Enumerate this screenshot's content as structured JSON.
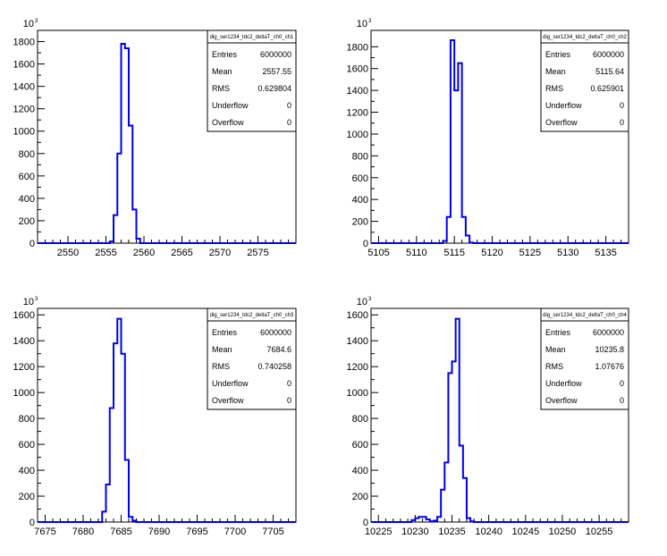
{
  "chart_data": [
    {
      "type": "histogram",
      "stats_title": "dig_ser1234_tdc2_deltaT_ch0_ch1",
      "stats": [
        {
          "label": "Entries",
          "value": "6000000"
        },
        {
          "label": "Mean",
          "value": "2557.55"
        },
        {
          "label": "RMS",
          "value": "0.629804"
        },
        {
          "label": "Underflow",
          "value": "0"
        },
        {
          "label": "Overflow",
          "value": "0"
        }
      ],
      "exponent_label": "10",
      "exponent_power": "3",
      "xlim": [
        2546,
        2580
      ],
      "ylim": [
        0,
        1900
      ],
      "x_ticks": [
        2550,
        2555,
        2560,
        2565,
        2570,
        2575
      ],
      "x_tick_labels": [
        "2550",
        "2555",
        "2560",
        "2565",
        "2570",
        "2575"
      ],
      "y_ticks": [
        0,
        200,
        400,
        600,
        800,
        1000,
        1200,
        1400,
        1600,
        1800
      ],
      "y_tick_labels": [
        "0",
        "200",
        "400",
        "600",
        "800",
        "1000",
        "1200",
        "1400",
        "1600",
        "1800"
      ],
      "bin_width": 0.5,
      "bins": [
        [
          2555.5,
          15
        ],
        [
          2556.0,
          250
        ],
        [
          2556.5,
          800
        ],
        [
          2557.0,
          1780
        ],
        [
          2557.5,
          1740
        ],
        [
          2558.0,
          1050
        ],
        [
          2558.5,
          300
        ],
        [
          2559.0,
          40
        ]
      ]
    },
    {
      "type": "histogram",
      "stats_title": "dig_ser1234_tdc2_deltaT_ch0_ch2",
      "stats": [
        {
          "label": "Entries",
          "value": "6000000"
        },
        {
          "label": "Mean",
          "value": "5115.64"
        },
        {
          "label": "RMS",
          "value": "0.625901"
        },
        {
          "label": "Underflow",
          "value": "0"
        },
        {
          "label": "Overflow",
          "value": "0"
        }
      ],
      "exponent_label": "10",
      "exponent_power": "3",
      "xlim": [
        5104,
        5138
      ],
      "ylim": [
        0,
        1950
      ],
      "x_ticks": [
        5105,
        5110,
        5115,
        5120,
        5125,
        5130,
        5135
      ],
      "x_tick_labels": [
        "5105",
        "5110",
        "5115",
        "5120",
        "5125",
        "5130",
        "5135"
      ],
      "y_ticks": [
        0,
        200,
        400,
        600,
        800,
        1000,
        1200,
        1400,
        1600,
        1800
      ],
      "y_tick_labels": [
        "0",
        "200",
        "400",
        "600",
        "800",
        "1000",
        "1200",
        "1400",
        "1600",
        "1800"
      ],
      "bin_width": 0.5,
      "bins": [
        [
          5113.5,
          20
        ],
        [
          5114.0,
          240
        ],
        [
          5114.5,
          1860
        ],
        [
          5115.0,
          1400
        ],
        [
          5115.5,
          1650
        ],
        [
          5116.0,
          240
        ],
        [
          5116.5,
          70
        ],
        [
          5117.0,
          5
        ]
      ]
    },
    {
      "type": "histogram",
      "stats_title": "dig_ser1234_tdc2_deltaT_ch0_ch3",
      "stats": [
        {
          "label": "Entries",
          "value": "6000000"
        },
        {
          "label": "Mean",
          "value": "7684.6"
        },
        {
          "label": "RMS",
          "value": "0.740258"
        },
        {
          "label": "Underflow",
          "value": "0"
        },
        {
          "label": "Overflow",
          "value": "0"
        }
      ],
      "exponent_label": "10",
      "exponent_power": "3",
      "xlim": [
        7674,
        7708
      ],
      "ylim": [
        0,
        1650
      ],
      "x_ticks": [
        7675,
        7680,
        7685,
        7690,
        7695,
        7700,
        7705
      ],
      "x_tick_labels": [
        "7675",
        "7680",
        "7685",
        "7690",
        "7695",
        "7700",
        "7705"
      ],
      "y_ticks": [
        0,
        200,
        400,
        600,
        800,
        1000,
        1200,
        1400,
        1600
      ],
      "y_tick_labels": [
        "0",
        "200",
        "400",
        "600",
        "800",
        "1000",
        "1200",
        "1400",
        "1600"
      ],
      "bin_width": 0.5,
      "bins": [
        [
          7682.5,
          80
        ],
        [
          7683.0,
          290
        ],
        [
          7683.5,
          880
        ],
        [
          7684.0,
          1380
        ],
        [
          7684.5,
          1570
        ],
        [
          7685.0,
          1300
        ],
        [
          7685.5,
          480
        ],
        [
          7686.0,
          40
        ],
        [
          7686.5,
          10
        ]
      ]
    },
    {
      "type": "histogram",
      "stats_title": "dig_ser1234_tdc2_deltaT_ch0_ch4",
      "stats": [
        {
          "label": "Entries",
          "value": "6000000"
        },
        {
          "label": "Mean",
          "value": "10235.8"
        },
        {
          "label": "RMS",
          "value": "1.07676"
        },
        {
          "label": "Underflow",
          "value": "0"
        },
        {
          "label": "Overflow",
          "value": "0"
        }
      ],
      "exponent_label": "10",
      "exponent_power": "3",
      "xlim": [
        10224,
        10259
      ],
      "ylim": [
        0,
        1650
      ],
      "x_ticks": [
        10225,
        10230,
        10235,
        10240,
        10245,
        10250,
        10255
      ],
      "x_tick_labels": [
        "10225",
        "10230",
        "10235",
        "10240",
        "10245",
        "10250",
        "10255"
      ],
      "y_ticks": [
        0,
        200,
        400,
        600,
        800,
        1000,
        1200,
        1400,
        1600
      ],
      "y_tick_labels": [
        "0",
        "200",
        "400",
        "600",
        "800",
        "1000",
        "1200",
        "1400",
        "1600"
      ],
      "bin_width": 0.5,
      "bins": [
        [
          10229.5,
          15
        ],
        [
          10230.0,
          30
        ],
        [
          10230.5,
          40
        ],
        [
          10231.0,
          40
        ],
        [
          10231.5,
          20
        ],
        [
          10232.0,
          5
        ],
        [
          10232.5,
          10
        ],
        [
          10233.0,
          40
        ],
        [
          10233.5,
          250
        ],
        [
          10234.0,
          460
        ],
        [
          10234.5,
          1150
        ],
        [
          10235.0,
          1240
        ],
        [
          10235.5,
          1570
        ],
        [
          10236.0,
          590
        ],
        [
          10236.5,
          340
        ],
        [
          10237.0,
          30
        ],
        [
          10237.5,
          5
        ]
      ]
    }
  ],
  "colors": {
    "histogram_line": "#0000ee",
    "axis": "#000000",
    "frame": "#000000"
  }
}
